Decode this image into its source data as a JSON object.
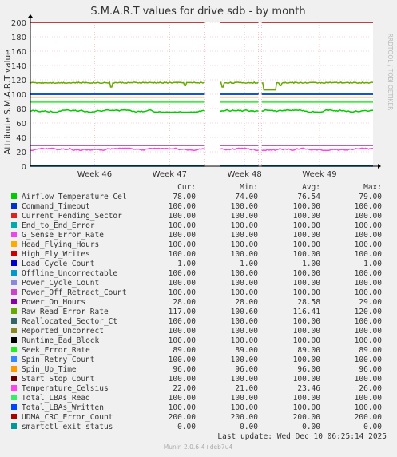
{
  "chart_data": {
    "type": "line",
    "title": "S.M.A.R.T values for drive sdb - by month",
    "ylabel": "Attribute S.M.A.R.T value",
    "xlabel": "",
    "ylim": [
      0,
      200
    ],
    "y_ticks": [
      0,
      20,
      40,
      60,
      80,
      100,
      120,
      140,
      160,
      180,
      200
    ],
    "x_ticks": [
      "Week 46",
      "Week 47",
      "Week 48",
      "Week 49"
    ],
    "x_tick_positions_days": [
      6,
      13,
      20,
      27
    ],
    "x_range_days": [
      0,
      32
    ],
    "gaps_days": [
      [
        16.3,
        17.7
      ],
      [
        21.3,
        21.6
      ]
    ],
    "grid": true,
    "watermark": "RRDTOOL / TOBI OETIKER",
    "legend_headers": [
      "Cur:",
      "Min:",
      "Avg:",
      "Max:"
    ],
    "series": [
      {
        "name": "Airflow_Temperature_Cel",
        "color": "#00cc00",
        "cur": "78.00",
        "min": "74.00",
        "avg": "76.54",
        "max": "79.00",
        "value": 76
      },
      {
        "name": "Command_Timeout",
        "color": "#0066b3",
        "cur": "100.00",
        "min": "100.00",
        "avg": "100.00",
        "max": "100.00",
        "value": 100
      },
      {
        "name": "Current_Pending_Sector",
        "color": "#ff8000",
        "cur": "100.00",
        "min": "100.00",
        "avg": "100.00",
        "max": "100.00",
        "value": 100
      },
      {
        "name": "End_to_End_Error",
        "color": "#ffcc00",
        "cur": "100.00",
        "min": "100.00",
        "avg": "100.00",
        "max": "100.00",
        "value": 100
      },
      {
        "name": "G_Sense_Error_Rate",
        "color": "#330099",
        "cur": "100.00",
        "min": "100.00",
        "avg": "100.00",
        "max": "100.00",
        "value": 100
      },
      {
        "name": "Head_Flying_Hours",
        "color": "#990099",
        "cur": "100.00",
        "min": "100.00",
        "avg": "100.00",
        "max": "100.00",
        "value": 100
      },
      {
        "name": "High_Fly_Writes",
        "color": "#ccff00",
        "cur": "100.00",
        "min": "100.00",
        "avg": "100.00",
        "max": "100.00",
        "value": 100
      },
      {
        "name": "Load_Cycle_Count",
        "color": "#ff0000",
        "cur": "1.00",
        "min": "1.00",
        "avg": "1.00",
        "max": "1.00",
        "value": 1
      },
      {
        "name": "Offline_Uncorrectable",
        "color": "#808080",
        "cur": "100.00",
        "min": "100.00",
        "avg": "100.00",
        "max": "100.00",
        "value": 100
      },
      {
        "name": "Power_Cycle_Count",
        "color": "#008f00",
        "cur": "100.00",
        "min": "100.00",
        "avg": "100.00",
        "max": "100.00",
        "value": 100
      },
      {
        "name": "Power_Off_Retract_Count",
        "color": "#00487d",
        "cur": "100.00",
        "min": "100.00",
        "avg": "100.00",
        "max": "100.00",
        "value": 100
      },
      {
        "name": "Power_On_Hours",
        "color": "#b35a00",
        "cur": "28.00",
        "min": "28.00",
        "avg": "28.58",
        "max": "29.00",
        "value": 28
      },
      {
        "name": "Raw_Read_Error_Rate",
        "color": "#b38f00",
        "cur": "117.00",
        "min": "100.60",
        "avg": "116.41",
        "max": "120.00",
        "value": 117
      },
      {
        "name": "Reallocated_Sector_Ct",
        "color": "#6b006b",
        "cur": "100.00",
        "min": "100.00",
        "avg": "100.00",
        "max": "100.00",
        "value": 100
      },
      {
        "name": "Reported_Uncorrect",
        "color": "#8fb300",
        "cur": "100.00",
        "min": "100.00",
        "avg": "100.00",
        "max": "100.00",
        "value": 100
      },
      {
        "name": "Runtime_Bad_Block",
        "color": "#b30000",
        "cur": "100.00",
        "min": "100.00",
        "avg": "100.00",
        "max": "100.00",
        "value": 100
      },
      {
        "name": "Seek_Error_Rate",
        "color": "#bebebe",
        "cur": "89.00",
        "min": "89.00",
        "avg": "89.00",
        "max": "89.00",
        "value": 89
      },
      {
        "name": "Spin_Retry_Count",
        "color": "#80ff80",
        "cur": "100.00",
        "min": "100.00",
        "avg": "100.00",
        "max": "100.00",
        "value": 100
      },
      {
        "name": "Spin_Up_Time",
        "color": "#80c9ff",
        "cur": "96.00",
        "min": "96.00",
        "avg": "96.00",
        "max": "96.00",
        "value": 96
      },
      {
        "name": "Start_Stop_Count",
        "color": "#ffc080",
        "cur": "100.00",
        "min": "100.00",
        "avg": "100.00",
        "max": "100.00",
        "value": 100
      },
      {
        "name": "Temperature_Celsius",
        "color": "#ffe680",
        "cur": "22.00",
        "min": "21.00",
        "avg": "23.46",
        "max": "26.00",
        "value": 23
      },
      {
        "name": "Total_LBAs_Read",
        "color": "#aa80ff",
        "cur": "100.00",
        "min": "100.00",
        "avg": "100.00",
        "max": "100.00",
        "value": 100
      },
      {
        "name": "Total_LBAs_Written",
        "color": "#ee00cc",
        "cur": "100.00",
        "min": "100.00",
        "avg": "100.00",
        "max": "100.00",
        "value": 100
      },
      {
        "name": "UDMA_CRC_Error_Count",
        "color": "#ff8080",
        "cur": "200.00",
        "min": "200.00",
        "avg": "200.00",
        "max": "200.00",
        "value": 200
      },
      {
        "name": "smartctl_exit_status",
        "color": "#666600",
        "cur": "0.00",
        "min": "0.00",
        "avg": "0.00",
        "max": "0.00",
        "value": 0
      }
    ],
    "line_colors": {
      "Airflow_Temperature_Cel": "#00cc00",
      "Command_Timeout": "#0033cc",
      "Current_Pending_Sector": "#dd2222",
      "End_to_End_Error": "#00aaaa",
      "G_Sense_Error_Rate": "#ee44ee",
      "Head_Flying_Hours": "#ffaa00",
      "High_Fly_Writes": "#cc0000",
      "Load_Cycle_Count": "#0000cc",
      "Offline_Uncorrectable": "#0099cc",
      "Power_Cycle_Count": "#8888dd",
      "Power_Off_Retract_Count": "#cc44cc",
      "Power_On_Hours": "#8800aa",
      "Raw_Read_Error_Rate": "#66aa00",
      "Reallocated_Sector_Ct": "#336666",
      "Reported_Uncorrect": "#888822",
      "Runtime_Bad_Block": "#000000",
      "Seek_Error_Rate": "#22ee22",
      "Spin_Retry_Count": "#3388ff",
      "Spin_Up_Time": "#ff9900",
      "Start_Stop_Count": "#660000",
      "Temperature_Celsius": "#ff44ee",
      "Total_LBAs_Read": "#33ee66",
      "Total_LBAs_Written": "#0044ff",
      "UDMA_CRC_Error_Count": "#aa0000",
      "smartctl_exit_status": "#009999"
    },
    "footer_update": "Last update:  Wed Dec 10 06:25:14 2025",
    "footer_version": "Munin 2.0.6-4+deb7u4"
  }
}
